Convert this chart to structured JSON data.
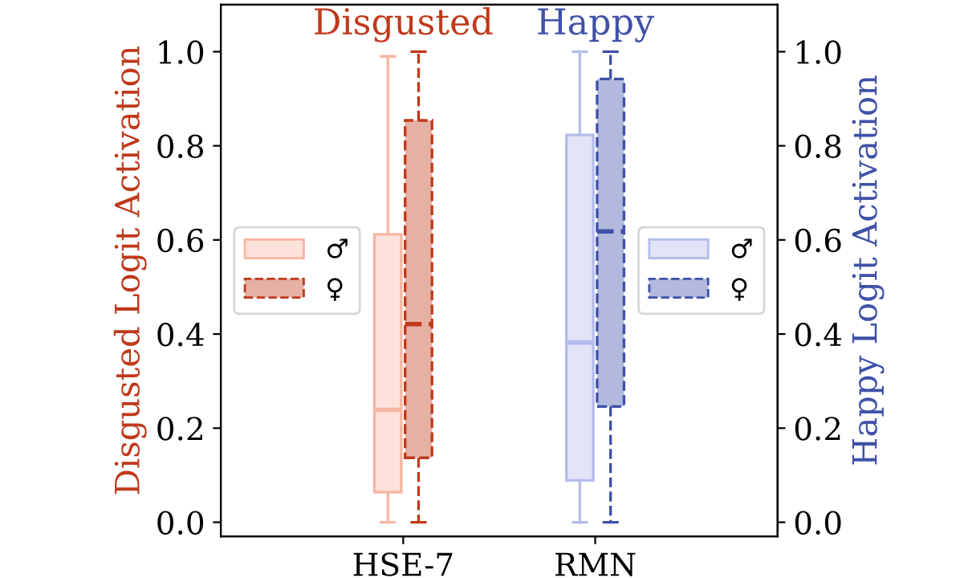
{
  "chart_data": {
    "type": "box",
    "categories": [
      "HSE-7",
      "RMN"
    ],
    "ylabel": "Disgusted Logit Activation",
    "y2label": "Happy Logit Activation",
    "ylim": [
      -0.03,
      1.1
    ],
    "yticks": [
      {
        "value": 0,
        "label": "0.0"
      },
      0.2,
      0.4,
      0.6,
      0.8,
      {
        "value": 1,
        "label": "1.0"
      }
    ],
    "y2lim": [
      -0.03,
      1.1
    ],
    "y2ticks": [
      {
        "value": 0,
        "label": "0.0"
      },
      0.2,
      0.4,
      0.6,
      0.8,
      {
        "value": 1,
        "label": "1.0"
      }
    ],
    "annotations": [
      "Disgusted",
      "Happy"
    ],
    "legend": "center",
    "grid": false,
    "series": [
      {
        "name": "♂",
        "color": "#f7b6a4",
        "axis": "y",
        "line_style": "solid",
        "boxes": [
          {
            "low": 0.0,
            "q1": 0.064,
            "median": 0.239,
            "q3": 0.612,
            "high": 0.99
          },
          null
        ]
      },
      {
        "name": "♀",
        "color": "#c0391b",
        "axis": "y",
        "line_style": "dashed",
        "boxes": [
          {
            "low": 0.0,
            "q1": 0.137,
            "median": 0.421,
            "q3": 0.854,
            "high": 1.0
          },
          null
        ]
      },
      {
        "name": "♂",
        "color": "#b4bcec",
        "axis": "y2",
        "line_style": "solid",
        "boxes": [
          null,
          {
            "low": 0.0,
            "q1": 0.089,
            "median": 0.382,
            "q3": 0.823,
            "high": 1.0
          }
        ]
      },
      {
        "name": "♀",
        "color": "#3f51a8",
        "axis": "y2",
        "line_style": "dashed",
        "boxes": [
          null,
          {
            "low": 0.0,
            "q1": 0.246,
            "median": 0.618,
            "q3": 0.942,
            "high": 1.0
          }
        ]
      }
    ]
  }
}
